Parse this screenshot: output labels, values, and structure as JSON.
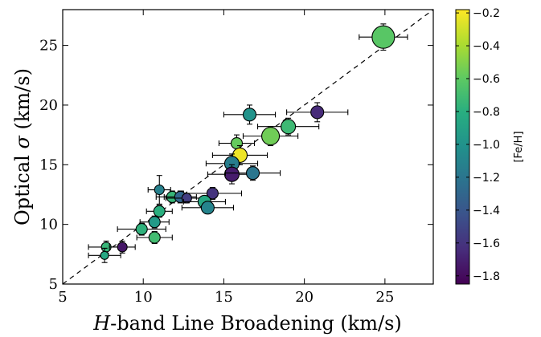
{
  "chart_data": {
    "type": "scatter",
    "xlabel_italic": "H",
    "xlabel_rest": "-band Line Broadening (km/s)",
    "ylabel_main": "Optical ",
    "ylabel_sigma": "σ",
    "ylabel_units": " (km/s)",
    "xlim": [
      5,
      28
    ],
    "ylim": [
      5,
      28
    ],
    "x_ticks": [
      5,
      10,
      15,
      20,
      25
    ],
    "y_ticks": [
      5,
      10,
      15,
      20,
      25
    ],
    "one_to_one_line": true,
    "colorbar": {
      "label": "[Fe/H]",
      "range": [
        -1.85,
        -0.18
      ],
      "ticks": [
        "−0.2",
        "−0.4",
        "−0.6",
        "−0.8",
        "−1.0",
        "−1.2",
        "−1.4",
        "−1.6",
        "−1.8"
      ],
      "tick_values": [
        -0.2,
        -0.4,
        -0.6,
        -0.8,
        -1.0,
        -1.2,
        -1.4,
        -1.6,
        -1.8
      ],
      "colormap": "viridis"
    },
    "points": [
      {
        "x": 24.9,
        "y": 25.7,
        "xerr": 1.5,
        "yerr": 1.1,
        "feh": -0.62,
        "size": 14
      },
      {
        "x": 20.8,
        "y": 19.4,
        "xerr": 1.9,
        "yerr": 0.8,
        "feh": -1.65,
        "size": 8
      },
      {
        "x": 16.6,
        "y": 19.2,
        "xerr": 1.6,
        "yerr": 0.8,
        "feh": -1.0,
        "size": 8
      },
      {
        "x": 19.0,
        "y": 18.2,
        "xerr": 1.9,
        "yerr": 0.7,
        "feh": -0.72,
        "size": 9
      },
      {
        "x": 17.9,
        "y": 17.4,
        "xerr": 1.7,
        "yerr": 0.8,
        "feh": -0.55,
        "size": 11
      },
      {
        "x": 15.8,
        "y": 16.8,
        "xerr": 1.1,
        "yerr": 0.7,
        "feh": -0.58,
        "size": 7
      },
      {
        "x": 16.0,
        "y": 15.8,
        "xerr": 1.7,
        "yerr": 0.8,
        "feh": -0.22,
        "size": 9
      },
      {
        "x": 15.5,
        "y": 15.1,
        "xerr": 1.6,
        "yerr": 0.8,
        "feh": -1.15,
        "size": 9
      },
      {
        "x": 15.5,
        "y": 14.2,
        "xerr": 1.5,
        "yerr": 0.8,
        "feh": -1.72,
        "size": 9
      },
      {
        "x": 16.8,
        "y": 14.3,
        "xerr": 1.7,
        "yerr": 0.6,
        "feh": -1.2,
        "size": 8
      },
      {
        "x": 11.0,
        "y": 12.9,
        "xerr": 0.7,
        "yerr": 1.2,
        "feh": -1.12,
        "size": 6
      },
      {
        "x": 14.3,
        "y": 12.6,
        "xerr": 1.8,
        "yerr": 0.5,
        "feh": -1.6,
        "size": 7
      },
      {
        "x": 11.8,
        "y": 12.3,
        "xerr": 1.0,
        "yerr": 0.5,
        "feh": -0.75,
        "size": 7
      },
      {
        "x": 12.3,
        "y": 12.3,
        "xerr": 1.0,
        "yerr": 0.5,
        "feh": -1.3,
        "size": 7
      },
      {
        "x": 12.7,
        "y": 12.2,
        "xerr": 1.3,
        "yerr": 0.4,
        "feh": -1.55,
        "size": 6
      },
      {
        "x": 13.8,
        "y": 11.9,
        "xerr": 1.3,
        "yerr": 0.5,
        "feh": -0.85,
        "size": 8
      },
      {
        "x": 14.0,
        "y": 11.4,
        "xerr": 1.6,
        "yerr": 0.5,
        "feh": -1.1,
        "size": 8
      },
      {
        "x": 11.0,
        "y": 11.1,
        "xerr": 0.8,
        "yerr": 0.5,
        "feh": -0.8,
        "size": 7
      },
      {
        "x": 10.7,
        "y": 10.2,
        "xerr": 0.9,
        "yerr": 0.5,
        "feh": -0.95,
        "size": 7
      },
      {
        "x": 9.9,
        "y": 9.6,
        "xerr": 1.5,
        "yerr": 0.5,
        "feh": -0.78,
        "size": 7
      },
      {
        "x": 10.7,
        "y": 8.9,
        "xerr": 1.1,
        "yerr": 0.5,
        "feh": -0.7,
        "size": 7
      },
      {
        "x": 7.7,
        "y": 8.1,
        "xerr": 1.1,
        "yerr": 0.5,
        "feh": -0.75,
        "size": 6
      },
      {
        "x": 8.7,
        "y": 8.1,
        "xerr": 0.8,
        "yerr": 0.5,
        "feh": -1.75,
        "size": 6
      },
      {
        "x": 7.6,
        "y": 7.4,
        "xerr": 1.0,
        "yerr": 0.6,
        "feh": -0.85,
        "size": 5
      }
    ]
  }
}
